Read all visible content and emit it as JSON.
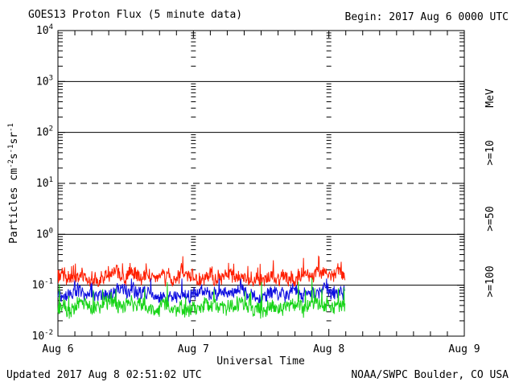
{
  "header": {
    "title": "GOES13 Proton Flux (5 minute data)",
    "begin_label": "Begin: 2017 Aug 6 0000 UTC"
  },
  "footer": {
    "updated": "Updated 2017 Aug  8 02:51:02 UTC",
    "source": "NOAA/SWPC Boulder, CO USA"
  },
  "chart_data": {
    "type": "line",
    "title": "GOES13 Proton Flux (5 minute data)",
    "begin": "2017 Aug 6 0000 UTC",
    "updated": "2017 Aug 8 02:51:02 UTC",
    "xlabel": "Universal Time",
    "ylabel": "Particles cm^-2 s^-1 sr^-1",
    "ylabel_parts": [
      [
        "Particles cm",
        false
      ],
      [
        "-2",
        true
      ],
      [
        "s",
        false
      ],
      [
        "-1",
        true
      ],
      [
        "sr",
        false
      ],
      [
        "-1",
        true
      ]
    ],
    "unit_label": "MeV",
    "y_axis": {
      "scale": "log",
      "min_exp": -2,
      "max_exp": 4,
      "tick_exponents": [
        4,
        3,
        2,
        1,
        0,
        -1,
        -2
      ]
    },
    "x_axis": {
      "days": 3,
      "tick_labels": [
        "Aug 6",
        "Aug 7",
        "Aug 8",
        "Aug 9"
      ],
      "minor_tick_hours": 3,
      "label": "Universal Time"
    },
    "gridlines": {
      "solid_exponents": [
        3,
        2,
        0,
        -1
      ],
      "dashed_exponents": [
        1
      ],
      "minor_log_ticks": [
        2,
        3,
        4,
        5,
        6,
        7,
        8,
        9
      ],
      "interior_tick_columns_at_days": [
        1,
        2
      ]
    },
    "coverage": {
      "start": "2017 Aug 6 00:00 UTC",
      "end": "2017 Aug 8 02:50 UTC",
      "days": 2.119,
      "cadence_minutes": 5,
      "samples": 610
    },
    "series": [
      {
        "name": "Protons >=10 MeV",
        "label": ">=10",
        "color": "#ff1e00",
        "label_color": "#c8402a",
        "band": {
          "min": 0.095,
          "median": 0.15,
          "max": 0.37
        },
        "render": {
          "seed": 11,
          "walk_scale": 0.3,
          "jitter": 0.13,
          "spike": 0.35,
          "spike_prob": 0.05
        }
      },
      {
        "name": "Protons >=50 MeV",
        "label": ">=50",
        "color": "#0f0fe0",
        "label_color": "#4133c0",
        "band": {
          "min": 0.045,
          "median": 0.068,
          "max": 0.135
        },
        "render": {
          "seed": 22,
          "walk_scale": 0.3,
          "jitter": 0.12,
          "spike": 0.3,
          "spike_prob": 0.04
        }
      },
      {
        "name": "Protons >=100 MeV",
        "label": ">=100",
        "color": "#17d417",
        "label_color": "#44cc44",
        "band": {
          "min": 0.022,
          "median": 0.038,
          "max": 0.14
        },
        "render": {
          "seed": 33,
          "walk_scale": 0.3,
          "jitter": 0.13,
          "spike": 0.5,
          "spike_prob": 0.05
        }
      }
    ]
  }
}
